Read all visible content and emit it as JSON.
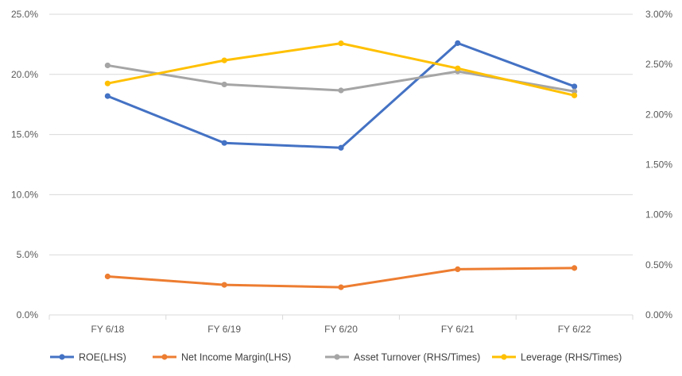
{
  "chart_data": {
    "type": "line",
    "title": "",
    "categories": [
      "FY 6/18",
      "FY 6/19",
      "FY 6/20",
      "FY 6/21",
      "FY 6/22"
    ],
    "y_left": {
      "min": 0,
      "max": 25,
      "step": 5,
      "tick_labels": [
        "0.0%",
        "5.0%",
        "10.0%",
        "15.0%",
        "20.0%",
        "25.0%"
      ]
    },
    "y_right": {
      "min": 0,
      "max": 3,
      "step": 0.5,
      "tick_labels": [
        "0.00%",
        "0.50%",
        "1.00%",
        "1.50%",
        "2.00%",
        "2.50%",
        "3.00%"
      ]
    },
    "grid": true,
    "legend_position": "bottom",
    "series": [
      {
        "name": "ROE(LHS)",
        "axis": "left",
        "color": "#4472C4",
        "values": [
          18.2,
          14.3,
          13.9,
          22.6,
          19.0
        ]
      },
      {
        "name": "Net Income Margin(LHS)",
        "axis": "left",
        "color": "#ED7D31",
        "values": [
          3.2,
          2.5,
          2.3,
          3.8,
          3.9
        ]
      },
      {
        "name": "Asset Turnover (RHS/Times)",
        "axis": "right",
        "color": "#A5A5A5",
        "values": [
          2.49,
          2.3,
          2.24,
          2.43,
          2.23
        ]
      },
      {
        "name": "Leverage (RHS/Times)",
        "axis": "right",
        "color": "#FFC000",
        "values": [
          2.31,
          2.54,
          2.71,
          2.46,
          2.19
        ]
      }
    ]
  }
}
